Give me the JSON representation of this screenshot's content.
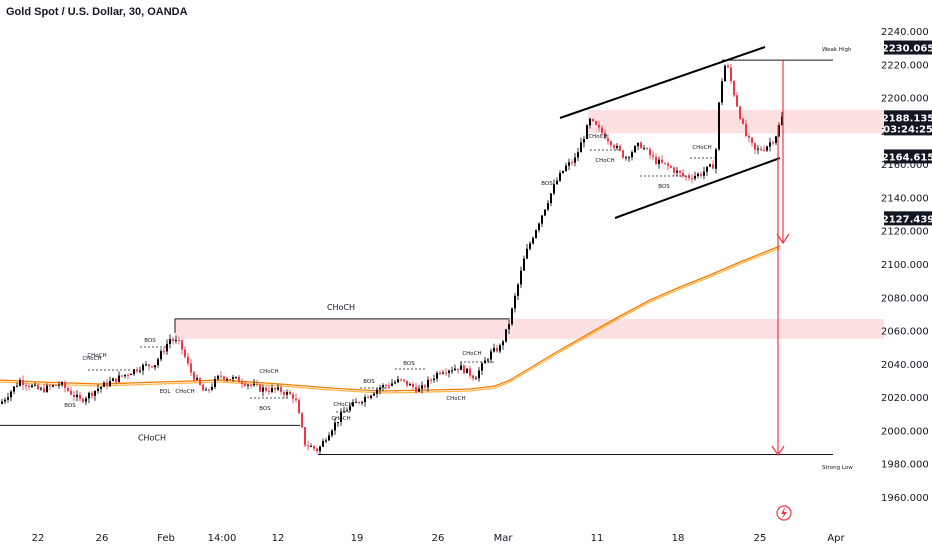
{
  "header": {
    "title": "Gold Spot / U.S. Dollar, 30, OANDA"
  },
  "chart_data": {
    "type": "candlestick",
    "y_ticks": [
      "2240.000",
      "2220.000",
      "2200.000",
      "2180.000",
      "2160.000",
      "2140.000",
      "2120.000",
      "2100.000",
      "2080.000",
      "2060.000",
      "2040.000",
      "2020.000",
      "2000.000",
      "1980.000",
      "1960.000"
    ],
    "x_ticks": [
      "22",
      "26",
      "Feb",
      "14:00",
      "12",
      "19",
      "26",
      "Mar",
      "11",
      "18",
      "25",
      "Apr"
    ],
    "ylim": [
      1955,
      2245
    ],
    "price_tags": [
      {
        "label": "2230.065",
        "value": 2230.065
      },
      {
        "label": "2188.135",
        "value": 2188.135
      },
      {
        "label": "03:24:25",
        "value": 2181.5
      },
      {
        "label": "2164.615",
        "value": 2164.615
      },
      {
        "label": "2127.439",
        "value": 2127.439
      }
    ],
    "annotations": {
      "choch_feb": "CHoCH",
      "choch_jan": "CHoCH",
      "weak_high": "Weak High",
      "strong_low": "Strong Low",
      "bos": "BOS",
      "choch": "CHoCH",
      "eql": "EQL"
    },
    "levels": {
      "weak_high": 2222.5,
      "strong_low": 1985.5,
      "choch_feb": 2067,
      "choch_jan": 2003,
      "supply_top": 2192.5,
      "supply_bottom": 2178.5,
      "demand_top": 2067,
      "demand_bottom": 2055
    },
    "colors": {
      "up": "#000000",
      "down": "#f23645",
      "ma": "#f57c00",
      "ma2": "#ffb74d",
      "zone": "#fde0e2",
      "arrow": "#f23645",
      "tag_dark": "#131722"
    }
  }
}
